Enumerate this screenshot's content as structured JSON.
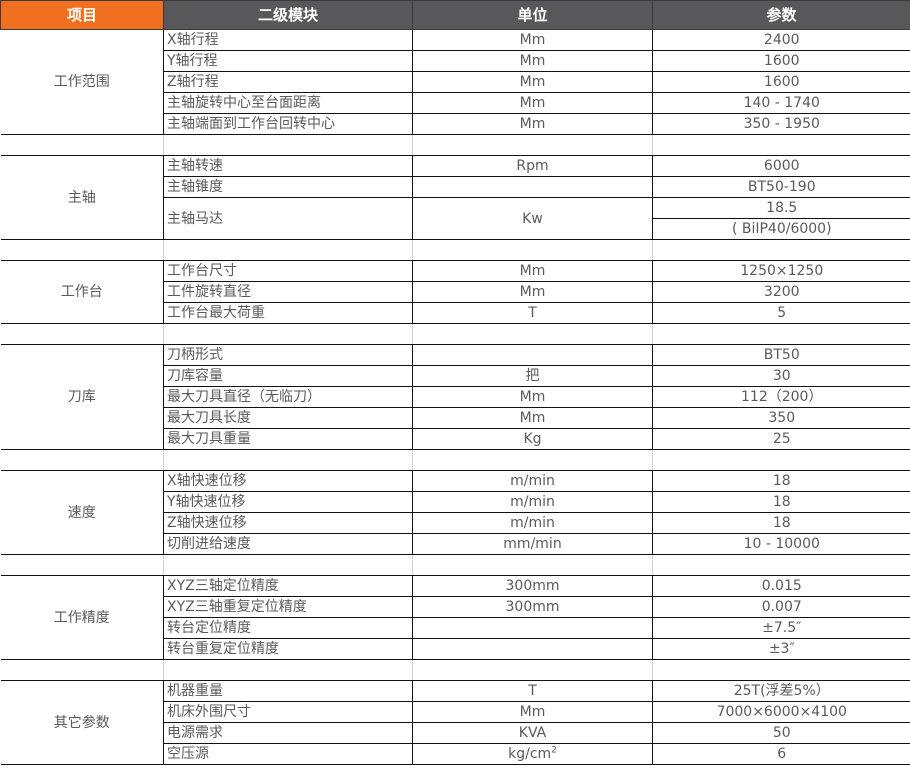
{
  "header": [
    "项目",
    "二级模块",
    "单位",
    "参数"
  ],
  "colors": {
    "header_first": "#f07020",
    "header": "#58585a",
    "text": "#5a5a5a"
  },
  "sections": [
    {
      "category": "工作范围",
      "rows": [
        {
          "name": "X轴行程",
          "unit": "Mm",
          "value": "2400"
        },
        {
          "name": "Y轴行程",
          "unit": "Mm",
          "value": "1600"
        },
        {
          "name": "Z轴行程",
          "unit": "Mm",
          "value": "1600"
        },
        {
          "name": "主轴旋转中心至台面距离",
          "unit": "Mm",
          "value": "140 - 1740"
        },
        {
          "name": "主轴端面到工作台回转中心",
          "unit": "Mm",
          "value": "350 - 1950"
        }
      ]
    },
    {
      "category": "主轴",
      "rows": [
        {
          "name": "主轴转速",
          "unit": "Rpm",
          "value": "6000"
        },
        {
          "name": "主轴锥度",
          "unit": "",
          "value": "BT50-190"
        },
        {
          "name": "主轴马达",
          "unit": "Kw",
          "value": "18.5",
          "value2": "( BiIP40/6000)"
        }
      ]
    },
    {
      "category": "工作台",
      "rows": [
        {
          "name": "工作台尺寸",
          "unit": "Mm",
          "value": "1250×1250"
        },
        {
          "name": "工件旋转直径",
          "unit": "Mm",
          "value": "3200"
        },
        {
          "name": "工作台最大荷重",
          "unit": "T",
          "value": "5"
        }
      ]
    },
    {
      "category": "刀库",
      "rows": [
        {
          "name": "刀柄形式",
          "unit": "",
          "value": "BT50"
        },
        {
          "name": "刀库容量",
          "unit": "把",
          "value": "30"
        },
        {
          "name": "最大刀具直径（无临刀）",
          "unit": "Mm",
          "value": "112（200）"
        },
        {
          "name": "最大刀具长度",
          "unit": "Mm",
          "value": "350"
        },
        {
          "name": "最大刀具重量",
          "unit": "Kg",
          "value": "25"
        }
      ]
    },
    {
      "category": "速度",
      "rows": [
        {
          "name": "X轴快速位移",
          "unit": "m/min",
          "value": "18"
        },
        {
          "name": "Y轴快速位移",
          "unit": "m/min",
          "value": "18"
        },
        {
          "name": "Z轴快速位移",
          "unit": "m/min",
          "value": "18"
        },
        {
          "name": "切削进给速度",
          "unit": "mm/min",
          "value": "10 - 10000"
        }
      ]
    },
    {
      "category": "工作精度",
      "rows": [
        {
          "name": "XYZ三轴定位精度",
          "unit": "300mm",
          "value": "0.015"
        },
        {
          "name": "XYZ三轴重复定位精度",
          "unit": "300mm",
          "value": "0.007"
        },
        {
          "name": "转台定位精度",
          "unit": "",
          "value": "±7.5″"
        },
        {
          "name": "转台重复定位精度",
          "unit": "",
          "value": "±3″"
        }
      ]
    },
    {
      "category": "其它参数",
      "rows": [
        {
          "name": "机器重量",
          "unit": "T",
          "value": "25T(浮差5%）"
        },
        {
          "name": "机床外围尺寸",
          "unit": "Mm",
          "value": "7000×6000×4100"
        },
        {
          "name": "电源需求",
          "unit": "KVA",
          "value": "50"
        },
        {
          "name": "空压源",
          "unit": "kg/cm",
          "unit_sup": "2",
          "value": "6"
        }
      ]
    }
  ]
}
